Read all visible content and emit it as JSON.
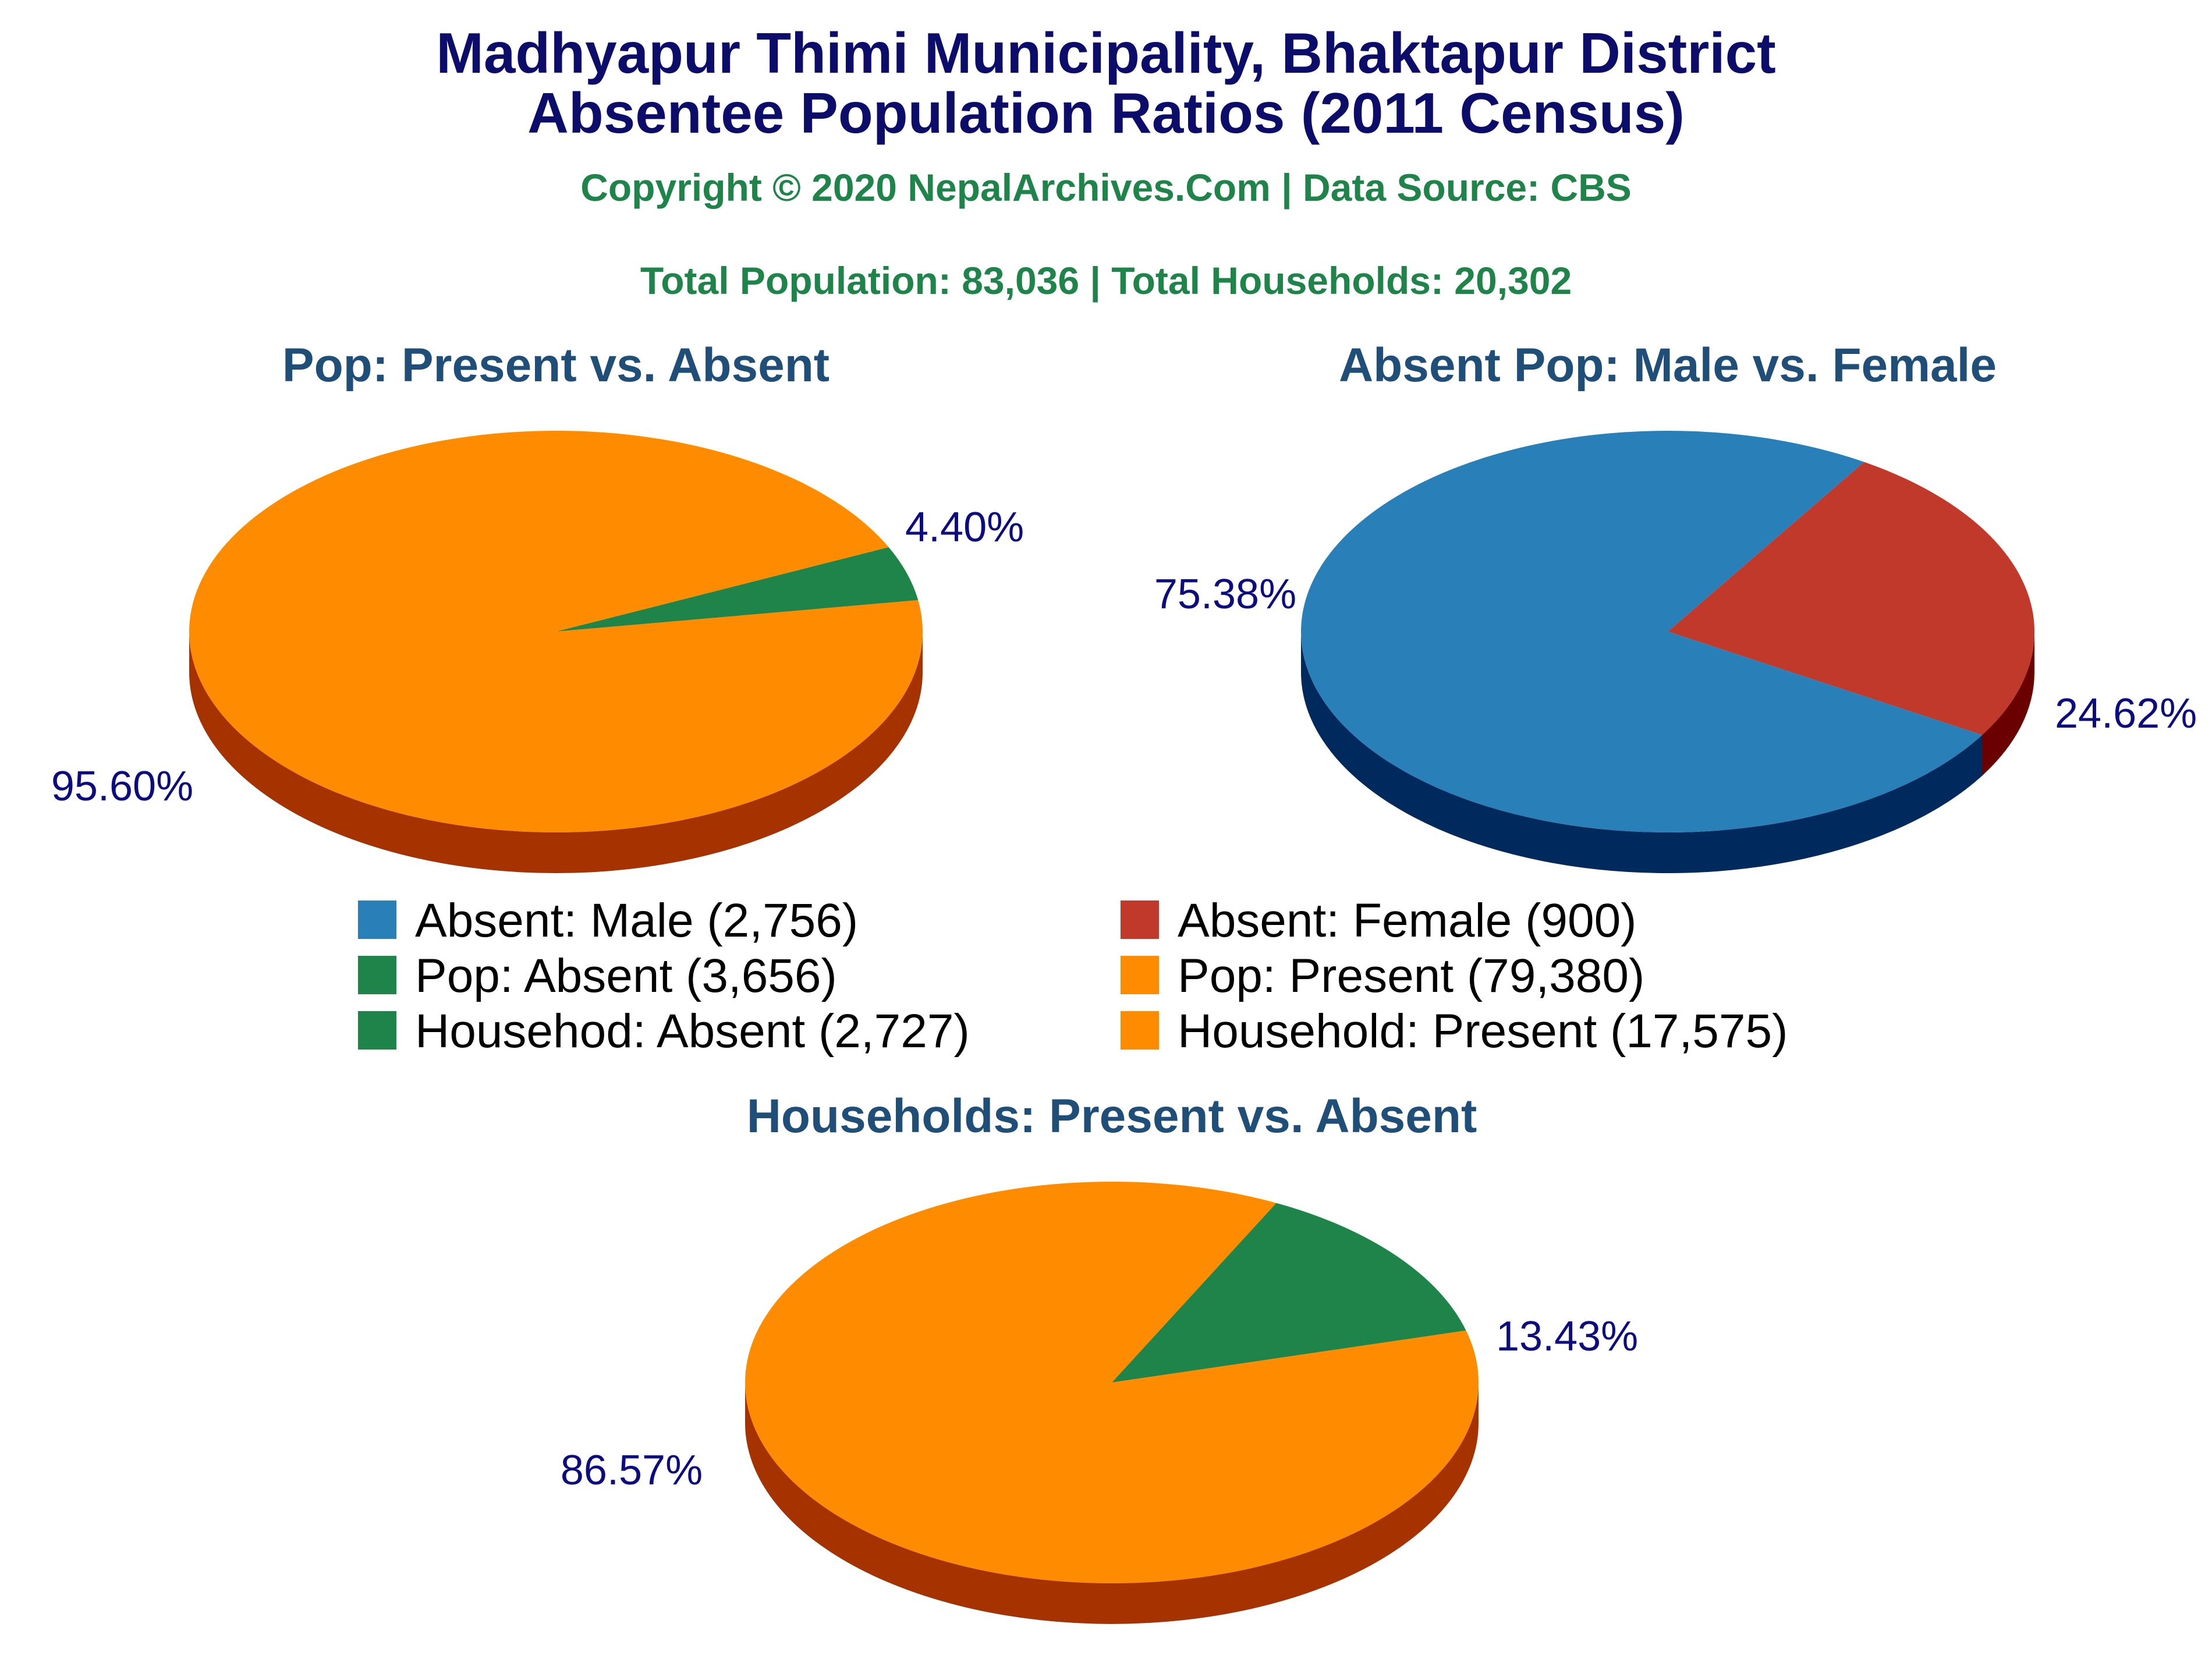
{
  "header": {
    "title_line1": "Madhyapur Thimi Municipality, Bhaktapur District",
    "title_line2": "Absentee Population Ratios (2011 Census)",
    "copyright": "Copyright © 2020 NepalArchives.Com | Data Source: CBS",
    "totals": "Total Population: 83,036 | Total Households: 20,302"
  },
  "chart_data": [
    {
      "type": "pie",
      "title": "Pop: Present vs. Absent",
      "slices": [
        {
          "label": "Pop: Absent",
          "value": 3656,
          "percent_label": "4.40%",
          "color": "#1e8449",
          "side_color": "#0b3d1f"
        },
        {
          "label": "Pop: Present",
          "value": 79380,
          "percent_label": "95.60%",
          "color": "#ff8c00",
          "side_color": "#a63200"
        }
      ]
    },
    {
      "type": "pie",
      "title": "Absent Pop: Male vs. Female",
      "slices": [
        {
          "label": "Absent: Female",
          "value": 900,
          "percent_label": "24.62%",
          "color": "#c0392b",
          "side_color": "#6b0000"
        },
        {
          "label": "Absent: Male",
          "value": 2756,
          "percent_label": "75.38%",
          "color": "#2980b9",
          "side_color": "#002a5e"
        }
      ]
    },
    {
      "type": "pie",
      "title": "Households: Present vs. Absent",
      "slices": [
        {
          "label": "Househod: Absent",
          "value": 2727,
          "percent_label": "13.43%",
          "color": "#1e8449",
          "side_color": "#0b3d1f"
        },
        {
          "label": "Household: Present",
          "value": 17575,
          "percent_label": "86.57%",
          "color": "#ff8c00",
          "side_color": "#a63200"
        }
      ]
    }
  ],
  "legend": {
    "items": [
      {
        "label": "Absent: Male (2,756)",
        "color": "#2980b9"
      },
      {
        "label": "Absent: Female (900)",
        "color": "#c0392b"
      },
      {
        "label": "Pop: Absent (3,656)",
        "color": "#1e8449"
      },
      {
        "label": "Pop: Present (79,380)",
        "color": "#ff8c00"
      },
      {
        "label": "Househod: Absent (2,727)",
        "color": "#1e8449"
      },
      {
        "label": "Household: Present (17,575)",
        "color": "#ff8c00"
      }
    ]
  }
}
